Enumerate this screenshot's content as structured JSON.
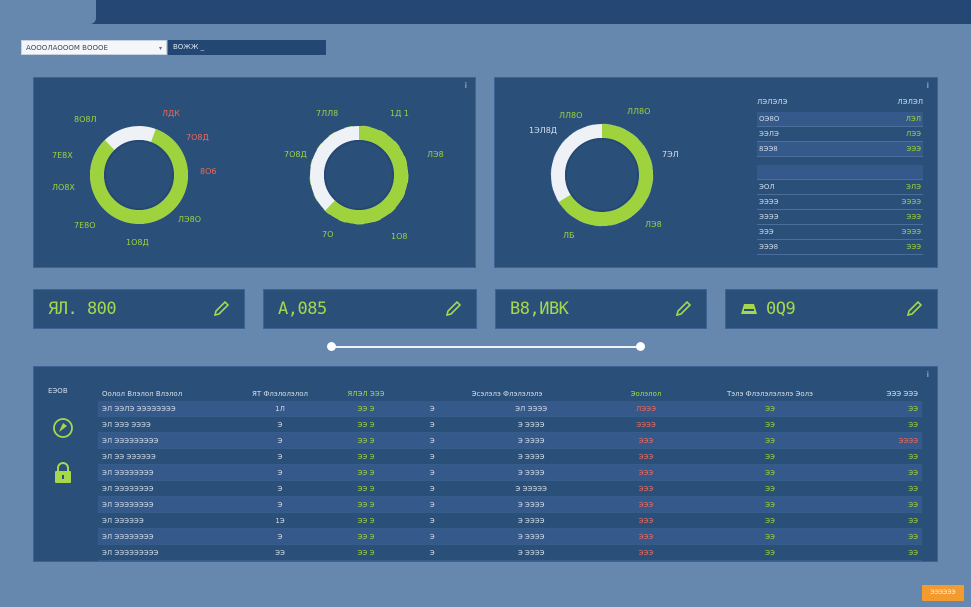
{
  "filters": {
    "select_value": "АОООЛАОООМ ВОООЕ",
    "field_value": "ВОЖЖ _"
  },
  "panel1": {
    "menu_glyph": "ⅰ",
    "donuts": [
      {
        "green": 0.82,
        "labels": {
          "top_left": "8О8Л",
          "top_right": "ЛДК",
          "upper_right": "7О8Д",
          "mid_left": "7Е8Х",
          "mid_right": "8О6",
          "lower_left": "ЛО8Х",
          "lower_right": "ЛЭ8О",
          "bottom_left": "7Е8О",
          "bottom": "1О8Д"
        }
      },
      {
        "green": 0.62,
        "labels": {
          "top_left": "7ЛЛ8",
          "top_right": "1Д 1",
          "mid_left": "7О8Д",
          "mid_right": "ЛЭ8",
          "bottom_left": "7О",
          "bottom_right": "1О8"
        }
      }
    ]
  },
  "panel2": {
    "menu_glyph": "ⅰ",
    "donut": {
      "green": 0.66,
      "labels": {
        "top_left": "1ЭЛ8Д",
        "top_left2": "ЛЛ8О",
        "top_right": "ЛЛ8О",
        "mid_right": "7ЭЛ",
        "bottom_left": "ЛБ",
        "bottom_right": "ЛЭ8"
      }
    },
    "legend": {
      "header": [
        "ЛЭЛЭЛЭ",
        "ЛЭЛЭЛ"
      ],
      "rows_top": [
        {
          "label": "ОЭ8О",
          "value": "ЛЭЛ"
        },
        {
          "label": "ЭЭЛЭ",
          "value": "ЛЭЭ"
        },
        {
          "label": "8ЭЭ8",
          "value": "ЭЭЭ"
        }
      ],
      "rows_bottom": [
        {
          "label": "ЭОЛ",
          "value": "ЭЛЭ"
        },
        {
          "label": "ЭЭЭЭ",
          "value": "ЭЭЭЭ"
        },
        {
          "label": "ЭЭЭЭ",
          "value": "ЭЭЭ"
        },
        {
          "label": "ЭЭЭ",
          "value": "ЭЭЭЭ"
        },
        {
          "label": "ЭЭЭ8",
          "value": "ЭЭЭ"
        }
      ]
    }
  },
  "kpis": [
    {
      "value": "ЯЛ. 800"
    },
    {
      "value": "А,085"
    },
    {
      "value": "В8,ИВК"
    },
    {
      "value": "0Q9"
    }
  ],
  "slider": {
    "start": 0.0,
    "end": 1.0
  },
  "table": {
    "side_title": "ЕЭОВ",
    "menu_glyph": "ⅰ",
    "headers": [
      "Оолол Влэлол Влэлол",
      "ЯТ Флэлолэлол",
      "ЯЛЭЛ ЭЭЭ",
      "Эсэлэлэ Флэлэлэлэ",
      "Эолэлол",
      "Тэлэ Флэлэлэлэлэ Эолэ",
      "ЭЭЭ ЭЭЭ"
    ],
    "rows": [
      [
        "ЭЛ ЭЭЛЭ ЭЭЭЭЭЭЭЭ",
        "1Л",
        "ЭЭ Э",
        "Э",
        "ЭЛ ЭЭЭЭ",
        "ЛЭЭЭ",
        "ЭЭ",
        "ЭЭ"
      ],
      [
        "ЭЛ ЭЭЭ ЭЭЭЭ",
        "Э",
        "ЭЭ Э",
        "Э",
        "Э ЭЭЭЭ",
        "ЭЭЭЭ",
        "ЭЭ",
        "ЭЭ"
      ],
      [
        "ЭЛ ЭЭЭЭЭЭЭЭЭ",
        "Э",
        "ЭЭ Э",
        "Э",
        "Э ЭЭЭЭ",
        "ЭЭЭ",
        "ЭЭ",
        "ЭЭЭЭ"
      ],
      [
        "ЭЛ ЭЭ ЭЭЭЭЭЭ",
        "Э",
        "ЭЭ Э",
        "Э",
        "Э ЭЭЭЭ",
        "ЭЭЭ",
        "ЭЭ",
        "ЭЭ"
      ],
      [
        "ЭЛ ЭЭЭЭЭЭЭЭ",
        "Э",
        "ЭЭ Э",
        "Э",
        "Э ЭЭЭЭ",
        "ЭЭЭ",
        "ЭЭ",
        "ЭЭ"
      ],
      [
        "ЭЛ ЭЭЭЭЭЭЭЭ",
        "Э",
        "ЭЭ Э",
        "Э",
        "Э ЭЭЭЭЭ",
        "ЭЭЭ",
        "ЭЭ",
        "ЭЭ"
      ],
      [
        "ЭЛ ЭЭЭЭЭЭЭЭ",
        "Э",
        "ЭЭ Э",
        "Э",
        "Э ЭЭЭЭ",
        "ЭЭЭ",
        "ЭЭ",
        "ЭЭ"
      ],
      [
        "ЭЛ ЭЭЭЭЭЭ",
        "1Э",
        "ЭЭ Э",
        "Э",
        "Э ЭЭЭЭ",
        "ЭЭЭ",
        "ЭЭ",
        "ЭЭ"
      ],
      [
        "ЭЛ ЭЭЭЭЭЭЭЭ",
        "Э",
        "ЭЭ Э",
        "Э",
        "Э ЭЭЭЭ",
        "ЭЭЭ",
        "ЭЭ",
        "ЭЭ"
      ],
      [
        "ЭЛ ЭЭЭЭЭЭЭЭЭ",
        "ЭЭ",
        "ЭЭ Э",
        "Э",
        "Э ЭЭЭЭ",
        "ЭЭЭ",
        "ЭЭ",
        "ЭЭ"
      ]
    ]
  },
  "button": {
    "label": "ЭЭЭЭЭЭ"
  },
  "colors": {
    "accent_green": "#9fd33e",
    "alert_red": "#ec6a5c",
    "panel": "#2a4f79",
    "button": "#f39b2f"
  }
}
